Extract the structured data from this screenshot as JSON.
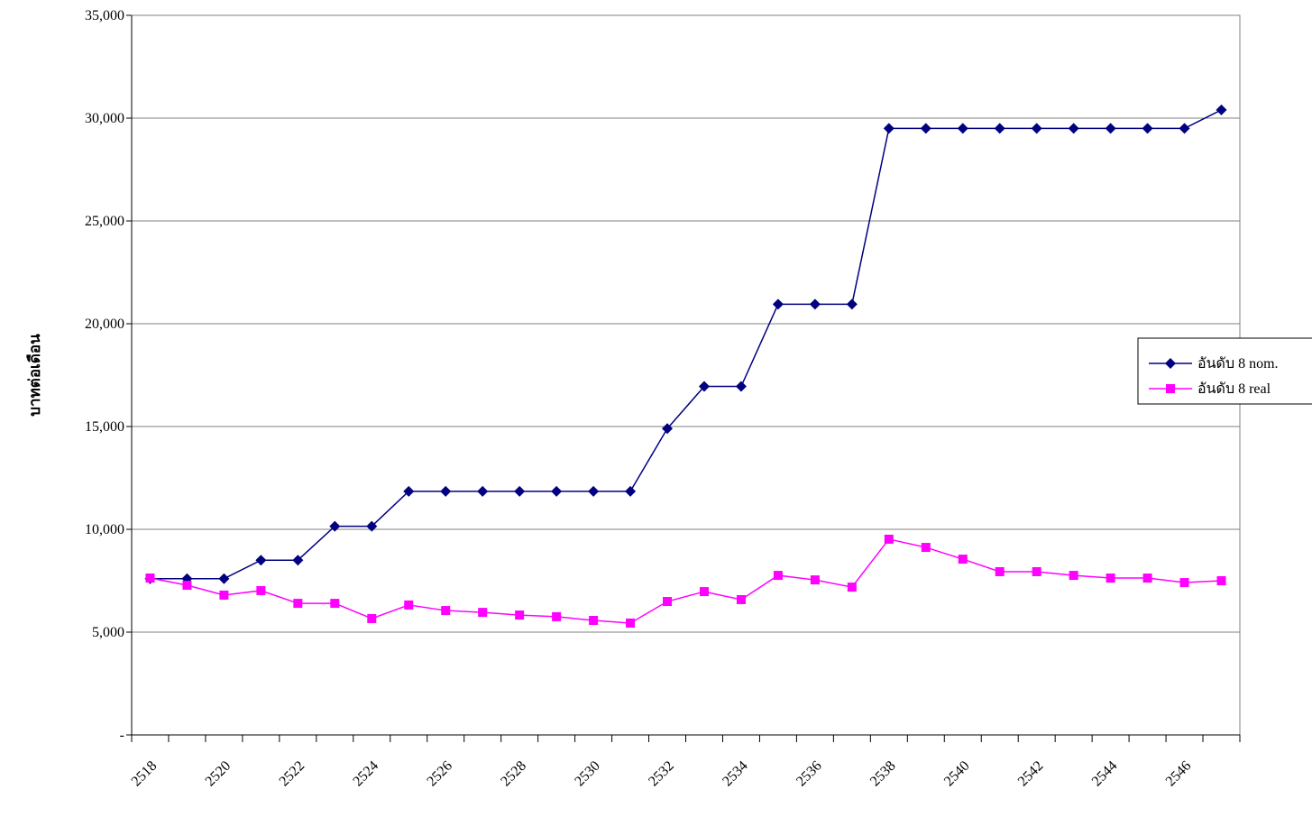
{
  "chart_data": {
    "type": "line",
    "y_label": "บาทต่อเดือน",
    "categories": [
      "2518",
      null,
      "2520",
      null,
      "2522",
      null,
      "2524",
      null,
      "2526",
      null,
      "2528",
      null,
      "2530",
      null,
      "2532",
      null,
      "2534",
      null,
      "2536",
      null,
      "2538",
      null,
      "2540",
      null,
      "2542",
      null,
      "2544",
      null,
      "2546",
      null
    ],
    "series": [
      {
        "name": "อันดับ 8 nom.",
        "color": "#000080",
        "marker": "diamond",
        "values": [
          7600,
          7600,
          7600,
          8500,
          8500,
          10150,
          10150,
          11850,
          11850,
          11850,
          11850,
          11850,
          11850,
          11850,
          14900,
          16950,
          16950,
          20950,
          20950,
          20950,
          29500,
          29500,
          29500,
          29500,
          29500,
          29500,
          29500,
          29500,
          29500,
          30400
        ]
      },
      {
        "name": "อันดับ 8 real",
        "color": "#ff00ff",
        "marker": "square",
        "values": [
          7630,
          7280,
          6800,
          7020,
          6400,
          6400,
          5660,
          6320,
          6050,
          5960,
          5830,
          5750,
          5570,
          5440,
          6490,
          6970,
          6580,
          7760,
          7540,
          7190,
          9520,
          9120,
          8550,
          7940,
          7940,
          7760,
          7630,
          7630,
          7410,
          7500
        ]
      }
    ],
    "ylim": [
      0,
      35000
    ],
    "yticks": [
      {
        "value": 0,
        "label": "-"
      },
      {
        "value": 5000,
        "label": "5,000"
      },
      {
        "value": 10000,
        "label": "10,000"
      },
      {
        "value": 15000,
        "label": "15,000"
      },
      {
        "value": 20000,
        "label": "20,000"
      },
      {
        "value": 25000,
        "label": "25,000"
      },
      {
        "value": 30000,
        "label": "30,000"
      },
      {
        "value": 35000,
        "label": "35,000"
      }
    ],
    "grid": true,
    "legend": "right"
  }
}
